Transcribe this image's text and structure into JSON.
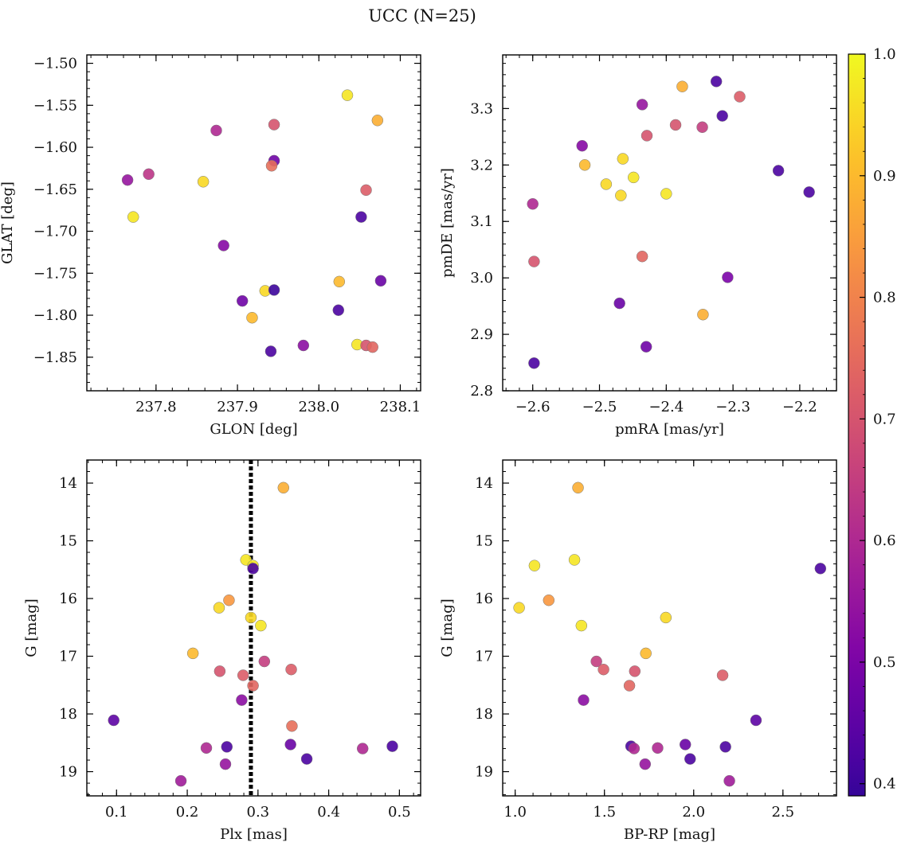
{
  "figure": {
    "title": "UCC (N=25)"
  },
  "colorbar": {
    "colormap": "plasma",
    "range": [
      0.39,
      1.0
    ],
    "ticks": [
      0.4,
      0.5,
      0.6,
      0.7,
      0.8,
      0.9,
      1.0
    ],
    "tick_labels": [
      "0.4",
      "0.5",
      "0.6",
      "0.7",
      "0.8",
      "0.9",
      "1.0"
    ]
  },
  "chart_data": [
    {
      "type": "scatter",
      "id": "glon-glat",
      "xlabel": "GLON [deg]",
      "ylabel": "GLAT [deg]",
      "xlim": [
        237.715,
        238.125
      ],
      "ylim": [
        -1.89,
        -1.49
      ],
      "yinvert": false,
      "xticks": [
        237.8,
        237.9,
        238.0,
        238.1
      ],
      "xtick_labels": [
        "237.8",
        "237.9",
        "238.0",
        "238.1"
      ],
      "yticks": [
        -1.5,
        -1.55,
        -1.6,
        -1.65,
        -1.7,
        -1.75,
        -1.8,
        -1.85
      ],
      "ytick_labels": [
        "−1.50",
        "−1.55",
        "−1.60",
        "−1.65",
        "−1.70",
        "−1.75",
        "−1.80",
        "−1.85"
      ],
      "points": [
        {
          "x": 238.035,
          "y": -1.538,
          "c": 0.97
        },
        {
          "x": 238.072,
          "y": -1.568,
          "c": 0.88
        },
        {
          "x": 237.945,
          "y": -1.573,
          "c": 0.7
        },
        {
          "x": 237.874,
          "y": -1.58,
          "c": 0.6
        },
        {
          "x": 237.945,
          "y": -1.616,
          "c": 0.48
        },
        {
          "x": 237.942,
          "y": -1.622,
          "c": 0.76
        },
        {
          "x": 237.791,
          "y": -1.632,
          "c": 0.63
        },
        {
          "x": 237.765,
          "y": -1.639,
          "c": 0.55
        },
        {
          "x": 237.858,
          "y": -1.641,
          "c": 0.95
        },
        {
          "x": 238.058,
          "y": -1.651,
          "c": 0.72
        },
        {
          "x": 237.772,
          "y": -1.683,
          "c": 0.97
        },
        {
          "x": 238.052,
          "y": -1.683,
          "c": 0.42
        },
        {
          "x": 237.883,
          "y": -1.717,
          "c": 0.52
        },
        {
          "x": 238.076,
          "y": -1.759,
          "c": 0.47
        },
        {
          "x": 238.025,
          "y": -1.76,
          "c": 0.9
        },
        {
          "x": 237.934,
          "y": -1.771,
          "c": 0.95
        },
        {
          "x": 237.945,
          "y": -1.77,
          "c": 0.4
        },
        {
          "x": 237.906,
          "y": -1.783,
          "c": 0.48
        },
        {
          "x": 238.024,
          "y": -1.794,
          "c": 0.42
        },
        {
          "x": 237.918,
          "y": -1.803,
          "c": 0.9
        },
        {
          "x": 237.981,
          "y": -1.836,
          "c": 0.53
        },
        {
          "x": 238.047,
          "y": -1.835,
          "c": 0.97
        },
        {
          "x": 238.058,
          "y": -1.836,
          "c": 0.7
        },
        {
          "x": 238.066,
          "y": -1.838,
          "c": 0.74
        },
        {
          "x": 237.941,
          "y": -1.843,
          "c": 0.42
        }
      ]
    },
    {
      "type": "scatter",
      "id": "pmra-pmde",
      "xlabel": "pmRA [mas/yr]",
      "ylabel": "pmDE [mas/yr]",
      "xlim": [
        -2.645,
        -2.145
      ],
      "ylim": [
        2.8,
        3.395
      ],
      "yinvert": false,
      "xticks": [
        -2.6,
        -2.5,
        -2.4,
        -2.3,
        -2.2
      ],
      "xtick_labels": [
        "−2.6",
        "−2.5",
        "−2.4",
        "−2.3",
        "−2.2"
      ],
      "yticks": [
        2.8,
        2.9,
        3.0,
        3.1,
        3.2,
        3.3
      ],
      "ytick_labels": [
        "2.8",
        "2.9",
        "3.0",
        "3.1",
        "3.2",
        "3.3"
      ],
      "points": [
        {
          "x": -2.325,
          "y": 3.348,
          "c": 0.42
        },
        {
          "x": -2.376,
          "y": 3.339,
          "c": 0.88
        },
        {
          "x": -2.29,
          "y": 3.321,
          "c": 0.72
        },
        {
          "x": -2.436,
          "y": 3.307,
          "c": 0.55
        },
        {
          "x": -2.316,
          "y": 3.287,
          "c": 0.42
        },
        {
          "x": -2.386,
          "y": 3.271,
          "c": 0.7
        },
        {
          "x": -2.346,
          "y": 3.267,
          "c": 0.65
        },
        {
          "x": -2.429,
          "y": 3.252,
          "c": 0.7
        },
        {
          "x": -2.526,
          "y": 3.234,
          "c": 0.52
        },
        {
          "x": -2.465,
          "y": 3.211,
          "c": 0.95
        },
        {
          "x": -2.522,
          "y": 3.2,
          "c": 0.9
        },
        {
          "x": -2.232,
          "y": 3.19,
          "c": 0.42
        },
        {
          "x": -2.449,
          "y": 3.178,
          "c": 0.97
        },
        {
          "x": -2.49,
          "y": 3.166,
          "c": 0.95
        },
        {
          "x": -2.186,
          "y": 3.152,
          "c": 0.42
        },
        {
          "x": -2.4,
          "y": 3.149,
          "c": 0.97
        },
        {
          "x": -2.468,
          "y": 3.146,
          "c": 0.95
        },
        {
          "x": -2.6,
          "y": 3.131,
          "c": 0.6
        },
        {
          "x": -2.436,
          "y": 3.038,
          "c": 0.74
        },
        {
          "x": -2.598,
          "y": 3.029,
          "c": 0.7
        },
        {
          "x": -2.308,
          "y": 3.001,
          "c": 0.5
        },
        {
          "x": -2.47,
          "y": 2.955,
          "c": 0.47
        },
        {
          "x": -2.345,
          "y": 2.935,
          "c": 0.88
        },
        {
          "x": -2.43,
          "y": 2.878,
          "c": 0.48
        },
        {
          "x": -2.598,
          "y": 2.849,
          "c": 0.42
        }
      ]
    },
    {
      "type": "scatter",
      "id": "plx-g",
      "xlabel": "Plx [mas]",
      "ylabel": "G [mag]",
      "xlim": [
        0.058,
        0.53
      ],
      "ylim": [
        13.6,
        19.42
      ],
      "yinvert": true,
      "vline": 0.29,
      "xticks": [
        0.1,
        0.2,
        0.3,
        0.4,
        0.5
      ],
      "xtick_labels": [
        "0.1",
        "0.2",
        "0.3",
        "0.4",
        "0.5"
      ],
      "yticks": [
        14,
        15,
        16,
        17,
        18,
        19
      ],
      "ytick_labels": [
        "14",
        "15",
        "16",
        "17",
        "18",
        "19"
      ],
      "points": [
        {
          "x": 0.336,
          "y": 14.08,
          "c": 0.88
        },
        {
          "x": 0.283,
          "y": 15.33,
          "c": 0.97
        },
        {
          "x": 0.293,
          "y": 15.43,
          "c": 0.97
        },
        {
          "x": 0.293,
          "y": 15.48,
          "c": 0.42
        },
        {
          "x": 0.259,
          "y": 16.03,
          "c": 0.84
        },
        {
          "x": 0.245,
          "y": 16.16,
          "c": 0.95
        },
        {
          "x": 0.29,
          "y": 16.33,
          "c": 0.95
        },
        {
          "x": 0.304,
          "y": 16.47,
          "c": 0.97
        },
        {
          "x": 0.208,
          "y": 16.95,
          "c": 0.9
        },
        {
          "x": 0.309,
          "y": 17.09,
          "c": 0.65
        },
        {
          "x": 0.347,
          "y": 17.23,
          "c": 0.72
        },
        {
          "x": 0.246,
          "y": 17.26,
          "c": 0.7
        },
        {
          "x": 0.279,
          "y": 17.33,
          "c": 0.72
        },
        {
          "x": 0.293,
          "y": 17.51,
          "c": 0.74
        },
        {
          "x": 0.277,
          "y": 17.76,
          "c": 0.53
        },
        {
          "x": 0.096,
          "y": 18.11,
          "c": 0.45
        },
        {
          "x": 0.348,
          "y": 18.21,
          "c": 0.76
        },
        {
          "x": 0.346,
          "y": 18.53,
          "c": 0.47
        },
        {
          "x": 0.49,
          "y": 18.56,
          "c": 0.42
        },
        {
          "x": 0.256,
          "y": 18.57,
          "c": 0.42
        },
        {
          "x": 0.227,
          "y": 18.59,
          "c": 0.6
        },
        {
          "x": 0.448,
          "y": 18.6,
          "c": 0.6
        },
        {
          "x": 0.369,
          "y": 18.78,
          "c": 0.42
        },
        {
          "x": 0.254,
          "y": 18.87,
          "c": 0.55
        },
        {
          "x": 0.191,
          "y": 19.16,
          "c": 0.57
        }
      ]
    },
    {
      "type": "scatter",
      "id": "bprp-g",
      "xlabel": "BP-RP [mag]",
      "ylabel": "G [mag]",
      "xlim": [
        0.93,
        2.8
      ],
      "ylim": [
        13.6,
        19.42
      ],
      "yinvert": true,
      "xticks": [
        1.0,
        1.5,
        2.0,
        2.5
      ],
      "xtick_labels": [
        "1.0",
        "1.5",
        "2.0",
        "2.5"
      ],
      "yticks": [
        14,
        15,
        16,
        17,
        18,
        19
      ],
      "ytick_labels": [
        "14",
        "15",
        "16",
        "17",
        "18",
        "19"
      ],
      "points": [
        {
          "x": 1.352,
          "y": 14.08,
          "c": 0.88
        },
        {
          "x": 1.108,
          "y": 15.43,
          "c": 0.97
        },
        {
          "x": 1.332,
          "y": 15.33,
          "c": 0.97
        },
        {
          "x": 2.71,
          "y": 15.48,
          "c": 0.42
        },
        {
          "x": 1.188,
          "y": 16.03,
          "c": 0.84
        },
        {
          "x": 1.022,
          "y": 16.16,
          "c": 0.95
        },
        {
          "x": 1.844,
          "y": 16.33,
          "c": 0.95
        },
        {
          "x": 1.371,
          "y": 16.47,
          "c": 0.97
        },
        {
          "x": 1.732,
          "y": 16.95,
          "c": 0.9
        },
        {
          "x": 1.455,
          "y": 17.09,
          "c": 0.65
        },
        {
          "x": 1.495,
          "y": 17.23,
          "c": 0.72
        },
        {
          "x": 1.67,
          "y": 17.26,
          "c": 0.7
        },
        {
          "x": 2.162,
          "y": 17.33,
          "c": 0.72
        },
        {
          "x": 1.64,
          "y": 17.51,
          "c": 0.74
        },
        {
          "x": 1.383,
          "y": 17.76,
          "c": 0.53
        },
        {
          "x": 2.349,
          "y": 18.11,
          "c": 0.45
        },
        {
          "x": 1.953,
          "y": 18.53,
          "c": 0.47
        },
        {
          "x": 1.649,
          "y": 18.56,
          "c": 0.42
        },
        {
          "x": 2.178,
          "y": 18.57,
          "c": 0.42
        },
        {
          "x": 1.798,
          "y": 18.59,
          "c": 0.6
        },
        {
          "x": 1.666,
          "y": 18.6,
          "c": 0.6
        },
        {
          "x": 1.98,
          "y": 18.78,
          "c": 0.42
        },
        {
          "x": 1.728,
          "y": 18.87,
          "c": 0.55
        },
        {
          "x": 2.2,
          "y": 19.16,
          "c": 0.57
        }
      ]
    }
  ]
}
